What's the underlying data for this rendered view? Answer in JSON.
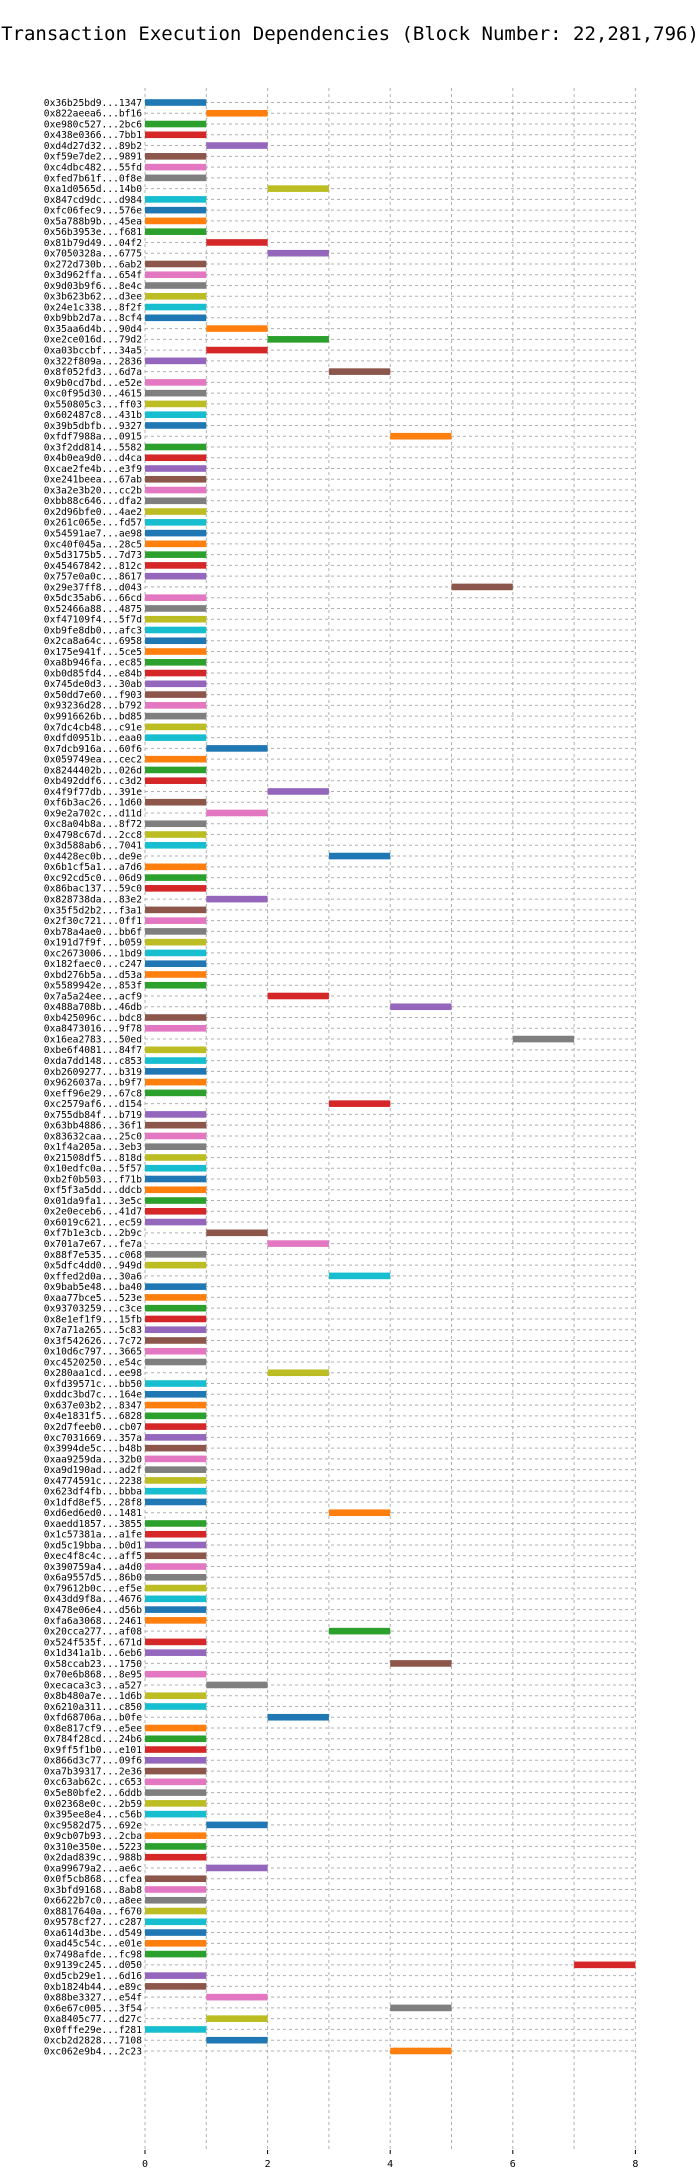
{
  "chart_data": {
    "type": "bar",
    "orientation": "horizontal-gantt",
    "title": "Transaction Execution Dependencies (Block Number: 22,281,796)",
    "xlabel": "",
    "ylabel": "",
    "xlim": [
      0,
      8
    ],
    "xticks": [
      0,
      2,
      4,
      6,
      8
    ],
    "grid": true,
    "legend": "none",
    "palette": [
      "#1f77b4",
      "#ff7f0e",
      "#2ca02c",
      "#d62728",
      "#9467bd",
      "#8c564b",
      "#e377c2",
      "#7f7f7f",
      "#bcbd22",
      "#17becf"
    ],
    "tasks": [
      {
        "tx": "0x36b25bd9...1347",
        "start": 0,
        "end": 1
      },
      {
        "tx": "0x822aeea6...bf16",
        "start": 1,
        "end": 2
      },
      {
        "tx": "0xe980c527...2bc6",
        "start": 0,
        "end": 1
      },
      {
        "tx": "0x438e0366...7bb1",
        "start": 0,
        "end": 1
      },
      {
        "tx": "0xd4d27d32...89b2",
        "start": 1,
        "end": 2
      },
      {
        "tx": "0xf59e7de2...9891",
        "start": 0,
        "end": 1
      },
      {
        "tx": "0xc4dbc482...55fd",
        "start": 0,
        "end": 1
      },
      {
        "tx": "0xfed7b61f...0f8e",
        "start": 0,
        "end": 1
      },
      {
        "tx": "0xa1d0565d...14b0",
        "start": 2,
        "end": 3
      },
      {
        "tx": "0x847cd9dc...d984",
        "start": 0,
        "end": 1
      },
      {
        "tx": "0xfc06fec9...576e",
        "start": 0,
        "end": 1
      },
      {
        "tx": "0x5a788b9b...45ea",
        "start": 0,
        "end": 1
      },
      {
        "tx": "0x56b3953e...f681",
        "start": 0,
        "end": 1
      },
      {
        "tx": "0x81b79d49...04f2",
        "start": 1,
        "end": 2
      },
      {
        "tx": "0x7050328a...6775",
        "start": 2,
        "end": 3
      },
      {
        "tx": "0x272d730b...6ab2",
        "start": 0,
        "end": 1
      },
      {
        "tx": "0x3d962ffa...654f",
        "start": 0,
        "end": 1
      },
      {
        "tx": "0x9d03b9f6...8e4c",
        "start": 0,
        "end": 1
      },
      {
        "tx": "0x3b623b62...d3ee",
        "start": 0,
        "end": 1
      },
      {
        "tx": "0x24e1c338...8f2f",
        "start": 0,
        "end": 1
      },
      {
        "tx": "0xb9bb2d7a...8cf4",
        "start": 0,
        "end": 1
      },
      {
        "tx": "0x35aa6d4b...90d4",
        "start": 1,
        "end": 2
      },
      {
        "tx": "0xe2ce016d...79d2",
        "start": 2,
        "end": 3
      },
      {
        "tx": "0xa03bccbf...34a5",
        "start": 1,
        "end": 2
      },
      {
        "tx": "0x322f809a...2836",
        "start": 0,
        "end": 1
      },
      {
        "tx": "0x8f052fd3...6d7a",
        "start": 3,
        "end": 4
      },
      {
        "tx": "0x9b0cd7bd...e52e",
        "start": 0,
        "end": 1
      },
      {
        "tx": "0xc0f95d30...4615",
        "start": 0,
        "end": 1
      },
      {
        "tx": "0x550805c3...ff03",
        "start": 0,
        "end": 1
      },
      {
        "tx": "0x602487c8...431b",
        "start": 0,
        "end": 1
      },
      {
        "tx": "0x39b5dbfb...9327",
        "start": 0,
        "end": 1
      },
      {
        "tx": "0xfdf7988a...0915",
        "start": 4,
        "end": 5
      },
      {
        "tx": "0x3f2dd814...5582",
        "start": 0,
        "end": 1
      },
      {
        "tx": "0x4b0ea9d0...d4ca",
        "start": 0,
        "end": 1
      },
      {
        "tx": "0xcae2fe4b...e3f9",
        "start": 0,
        "end": 1
      },
      {
        "tx": "0xe241beea...67ab",
        "start": 0,
        "end": 1
      },
      {
        "tx": "0x3a2e3b20...cc2b",
        "start": 0,
        "end": 1
      },
      {
        "tx": "0xbb88c646...dfa2",
        "start": 0,
        "end": 1
      },
      {
        "tx": "0x2d96bfe0...4ae2",
        "start": 0,
        "end": 1
      },
      {
        "tx": "0x261c065e...fd57",
        "start": 0,
        "end": 1
      },
      {
        "tx": "0x54591ae7...ae98",
        "start": 0,
        "end": 1
      },
      {
        "tx": "0xc40f045a...28c5",
        "start": 0,
        "end": 1
      },
      {
        "tx": "0x5d3175b5...7d73",
        "start": 0,
        "end": 1
      },
      {
        "tx": "0x45467842...812c",
        "start": 0,
        "end": 1
      },
      {
        "tx": "0x757e0a0c...8617",
        "start": 0,
        "end": 1
      },
      {
        "tx": "0x29e37ff8...d043",
        "start": 5,
        "end": 6
      },
      {
        "tx": "0x5dc35ab6...66cd",
        "start": 0,
        "end": 1
      },
      {
        "tx": "0x52466a88...4875",
        "start": 0,
        "end": 1
      },
      {
        "tx": "0xf47109f4...5f7d",
        "start": 0,
        "end": 1
      },
      {
        "tx": "0xb9fe8db0...afc3",
        "start": 0,
        "end": 1
      },
      {
        "tx": "0x2ca8a64c...6958",
        "start": 0,
        "end": 1
      },
      {
        "tx": "0x175e941f...5ce5",
        "start": 0,
        "end": 1
      },
      {
        "tx": "0xa8b946fa...ec85",
        "start": 0,
        "end": 1
      },
      {
        "tx": "0xb0d85fd4...e84b",
        "start": 0,
        "end": 1
      },
      {
        "tx": "0x745de0d3...30ab",
        "start": 0,
        "end": 1
      },
      {
        "tx": "0x50dd7e60...f903",
        "start": 0,
        "end": 1
      },
      {
        "tx": "0x93236d28...b792",
        "start": 0,
        "end": 1
      },
      {
        "tx": "0x9916626b...bd85",
        "start": 0,
        "end": 1
      },
      {
        "tx": "0x7dc4cb48...c91e",
        "start": 0,
        "end": 1
      },
      {
        "tx": "0xdfd0951b...eaa0",
        "start": 0,
        "end": 1
      },
      {
        "tx": "0x7dcb916a...60f6",
        "start": 1,
        "end": 2
      },
      {
        "tx": "0x059749ea...cec2",
        "start": 0,
        "end": 1
      },
      {
        "tx": "0x8244402b...026d",
        "start": 0,
        "end": 1
      },
      {
        "tx": "0xb492ddf6...c3d2",
        "start": 0,
        "end": 1
      },
      {
        "tx": "0x4f9f77db...391e",
        "start": 2,
        "end": 3
      },
      {
        "tx": "0xf6b3ac26...1d60",
        "start": 0,
        "end": 1
      },
      {
        "tx": "0x9e2a702c...d11d",
        "start": 1,
        "end": 2
      },
      {
        "tx": "0xc8a04b8a...8f72",
        "start": 0,
        "end": 1
      },
      {
        "tx": "0x4798c67d...2cc8",
        "start": 0,
        "end": 1
      },
      {
        "tx": "0x3d588ab6...7041",
        "start": 0,
        "end": 1
      },
      {
        "tx": "0x4428ec0b...de9e",
        "start": 3,
        "end": 4
      },
      {
        "tx": "0x6b1cf5a1...a7d6",
        "start": 0,
        "end": 1
      },
      {
        "tx": "0xc92cd5c0...06d9",
        "start": 0,
        "end": 1
      },
      {
        "tx": "0x86bac137...59c0",
        "start": 0,
        "end": 1
      },
      {
        "tx": "0x828738da...83e2",
        "start": 1,
        "end": 2
      },
      {
        "tx": "0x35f5d2b2...f3a1",
        "start": 0,
        "end": 1
      },
      {
        "tx": "0x2f30c721...0ff1",
        "start": 0,
        "end": 1
      },
      {
        "tx": "0xb78a4ae0...bb6f",
        "start": 0,
        "end": 1
      },
      {
        "tx": "0x191d7f9f...b059",
        "start": 0,
        "end": 1
      },
      {
        "tx": "0xc2673006...1bd9",
        "start": 0,
        "end": 1
      },
      {
        "tx": "0x182faec0...c247",
        "start": 0,
        "end": 1
      },
      {
        "tx": "0xbd276b5a...d53a",
        "start": 0,
        "end": 1
      },
      {
        "tx": "0x5589942e...853f",
        "start": 0,
        "end": 1
      },
      {
        "tx": "0x7a5a24ee...acf9",
        "start": 2,
        "end": 3
      },
      {
        "tx": "0x488a708b...46db",
        "start": 4,
        "end": 5
      },
      {
        "tx": "0xb425096c...bdc8",
        "start": 0,
        "end": 1
      },
      {
        "tx": "0xa8473016...9f78",
        "start": 0,
        "end": 1
      },
      {
        "tx": "0x16ea2783...50ed",
        "start": 6,
        "end": 7
      },
      {
        "tx": "0xbe6f4081...84f7",
        "start": 0,
        "end": 1
      },
      {
        "tx": "0xda7dd148...c853",
        "start": 0,
        "end": 1
      },
      {
        "tx": "0xb2609277...b319",
        "start": 0,
        "end": 1
      },
      {
        "tx": "0x9626037a...b9f7",
        "start": 0,
        "end": 1
      },
      {
        "tx": "0xeff96e29...67c8",
        "start": 0,
        "end": 1
      },
      {
        "tx": "0xc2579af6...d154",
        "start": 3,
        "end": 4
      },
      {
        "tx": "0x755db84f...b719",
        "start": 0,
        "end": 1
      },
      {
        "tx": "0x63bb4886...36f1",
        "start": 0,
        "end": 1
      },
      {
        "tx": "0x83632caa...25c0",
        "start": 0,
        "end": 1
      },
      {
        "tx": "0x1f4a205a...3eb3",
        "start": 0,
        "end": 1
      },
      {
        "tx": "0x21508df5...818d",
        "start": 0,
        "end": 1
      },
      {
        "tx": "0x10edfc0a...5f57",
        "start": 0,
        "end": 1
      },
      {
        "tx": "0xb2f0b503...f71b",
        "start": 0,
        "end": 1
      },
      {
        "tx": "0xf5f3a5dd...ddcb",
        "start": 0,
        "end": 1
      },
      {
        "tx": "0x01da9fa1...3e5c",
        "start": 0,
        "end": 1
      },
      {
        "tx": "0x2e0eceb6...41d7",
        "start": 0,
        "end": 1
      },
      {
        "tx": "0x6019c621...ec59",
        "start": 0,
        "end": 1
      },
      {
        "tx": "0xf7b1e3cb...2b9c",
        "start": 1,
        "end": 2
      },
      {
        "tx": "0x701a7e67...fe7a",
        "start": 2,
        "end": 3
      },
      {
        "tx": "0x88f7e535...c068",
        "start": 0,
        "end": 1
      },
      {
        "tx": "0x5dfc4dd0...949d",
        "start": 0,
        "end": 1
      },
      {
        "tx": "0xffed2d0a...30a6",
        "start": 3,
        "end": 4
      },
      {
        "tx": "0x9bab5e48...ba40",
        "start": 0,
        "end": 1
      },
      {
        "tx": "0xaa77bce5...523e",
        "start": 0,
        "end": 1
      },
      {
        "tx": "0x93703259...c3ce",
        "start": 0,
        "end": 1
      },
      {
        "tx": "0x8e1ef1f9...15fb",
        "start": 0,
        "end": 1
      },
      {
        "tx": "0x7a71a265...5c83",
        "start": 0,
        "end": 1
      },
      {
        "tx": "0x3f542626...7c72",
        "start": 0,
        "end": 1
      },
      {
        "tx": "0x10d6c797...3665",
        "start": 0,
        "end": 1
      },
      {
        "tx": "0xc4520250...e54c",
        "start": 0,
        "end": 1
      },
      {
        "tx": "0x280aa1cd...ee98",
        "start": 2,
        "end": 3
      },
      {
        "tx": "0xfd39571c...bb50",
        "start": 0,
        "end": 1
      },
      {
        "tx": "0xddc3bd7c...164e",
        "start": 0,
        "end": 1
      },
      {
        "tx": "0x637e03b2...8347",
        "start": 0,
        "end": 1
      },
      {
        "tx": "0x4e1831f5...6828",
        "start": 0,
        "end": 1
      },
      {
        "tx": "0x2d7feeb0...cb07",
        "start": 0,
        "end": 1
      },
      {
        "tx": "0xc7031669...357a",
        "start": 0,
        "end": 1
      },
      {
        "tx": "0x3994de5c...b48b",
        "start": 0,
        "end": 1
      },
      {
        "tx": "0xaa9259da...32b0",
        "start": 0,
        "end": 1
      },
      {
        "tx": "0xa9d190ad...ad2f",
        "start": 0,
        "end": 1
      },
      {
        "tx": "0x4774591c...2238",
        "start": 0,
        "end": 1
      },
      {
        "tx": "0x623df4fb...bbba",
        "start": 0,
        "end": 1
      },
      {
        "tx": "0x1dfd8ef5...28f8",
        "start": 0,
        "end": 1
      },
      {
        "tx": "0xd6ed6ed0...1481",
        "start": 3,
        "end": 4
      },
      {
        "tx": "0xaedd1857...3855",
        "start": 0,
        "end": 1
      },
      {
        "tx": "0x1c57381a...a1fe",
        "start": 0,
        "end": 1
      },
      {
        "tx": "0xd5c19bba...b0d1",
        "start": 0,
        "end": 1
      },
      {
        "tx": "0xec4f8c4c...aff5",
        "start": 0,
        "end": 1
      },
      {
        "tx": "0x390759a4...a4d0",
        "start": 0,
        "end": 1
      },
      {
        "tx": "0x6a9557d5...86b0",
        "start": 0,
        "end": 1
      },
      {
        "tx": "0x79612b0c...ef5e",
        "start": 0,
        "end": 1
      },
      {
        "tx": "0x43dd9f8a...4676",
        "start": 0,
        "end": 1
      },
      {
        "tx": "0x478e06e4...d56b",
        "start": 0,
        "end": 1
      },
      {
        "tx": "0xfa6a3068...2461",
        "start": 0,
        "end": 1
      },
      {
        "tx": "0x20cca277...af08",
        "start": 3,
        "end": 4
      },
      {
        "tx": "0x524f535f...671d",
        "start": 0,
        "end": 1
      },
      {
        "tx": "0x1d341a1b...6eb6",
        "start": 0,
        "end": 1
      },
      {
        "tx": "0x58ccab23...1750",
        "start": 4,
        "end": 5
      },
      {
        "tx": "0x70e6b868...8e95",
        "start": 0,
        "end": 1
      },
      {
        "tx": "0xecaca3c3...a527",
        "start": 1,
        "end": 2
      },
      {
        "tx": "0x8b480a7e...1d6b",
        "start": 0,
        "end": 1
      },
      {
        "tx": "0x6210a311...c850",
        "start": 0,
        "end": 1
      },
      {
        "tx": "0xfd68706a...b0fe",
        "start": 2,
        "end": 3
      },
      {
        "tx": "0x8e817cf9...e5ee",
        "start": 0,
        "end": 1
      },
      {
        "tx": "0x784f28cd...24b6",
        "start": 0,
        "end": 1
      },
      {
        "tx": "0x9ff5f1b0...e101",
        "start": 0,
        "end": 1
      },
      {
        "tx": "0x866d3c77...09f6",
        "start": 0,
        "end": 1
      },
      {
        "tx": "0xa7b39317...2e36",
        "start": 0,
        "end": 1
      },
      {
        "tx": "0xc63ab62c...c653",
        "start": 0,
        "end": 1
      },
      {
        "tx": "0x5e80bfe2...6ddb",
        "start": 0,
        "end": 1
      },
      {
        "tx": "0x02368e0c...2b59",
        "start": 0,
        "end": 1
      },
      {
        "tx": "0x395ee8e4...c56b",
        "start": 0,
        "end": 1
      },
      {
        "tx": "0xc9582d75...692e",
        "start": 1,
        "end": 2
      },
      {
        "tx": "0x9cb07b93...2cba",
        "start": 0,
        "end": 1
      },
      {
        "tx": "0x310e350e...5223",
        "start": 0,
        "end": 1
      },
      {
        "tx": "0x2dad839c...988b",
        "start": 0,
        "end": 1
      },
      {
        "tx": "0xa99679a2...ae6c",
        "start": 1,
        "end": 2
      },
      {
        "tx": "0x0f5cb868...cfea",
        "start": 0,
        "end": 1
      },
      {
        "tx": "0x3bfd9168...8ab8",
        "start": 0,
        "end": 1
      },
      {
        "tx": "0x6622b7c0...a8ee",
        "start": 0,
        "end": 1
      },
      {
        "tx": "0x8817640a...f670",
        "start": 0,
        "end": 1
      },
      {
        "tx": "0x9578cf27...c287",
        "start": 0,
        "end": 1
      },
      {
        "tx": "0xa614d3be...d549",
        "start": 0,
        "end": 1
      },
      {
        "tx": "0xad45c54c...e01e",
        "start": 0,
        "end": 1
      },
      {
        "tx": "0x7498afde...fc98",
        "start": 0,
        "end": 1
      },
      {
        "tx": "0x9139c245...d050",
        "start": 7,
        "end": 8
      },
      {
        "tx": "0xd5cb29e1...6d16",
        "start": 0,
        "end": 1
      },
      {
        "tx": "0xb1824b44...e89c",
        "start": 0,
        "end": 1
      },
      {
        "tx": "0x88be3327...e54f",
        "start": 1,
        "end": 2
      },
      {
        "tx": "0x6e67c005...3f54",
        "start": 4,
        "end": 5
      },
      {
        "tx": "0xa8405c77...d27c",
        "start": 1,
        "end": 2
      },
      {
        "tx": "0x0fffe29e...f281",
        "start": 0,
        "end": 1
      },
      {
        "tx": "0xcb2d2828...7108",
        "start": 1,
        "end": 2
      },
      {
        "tx": "0xc062e9b4...2c23",
        "start": 4,
        "end": 5
      }
    ]
  }
}
